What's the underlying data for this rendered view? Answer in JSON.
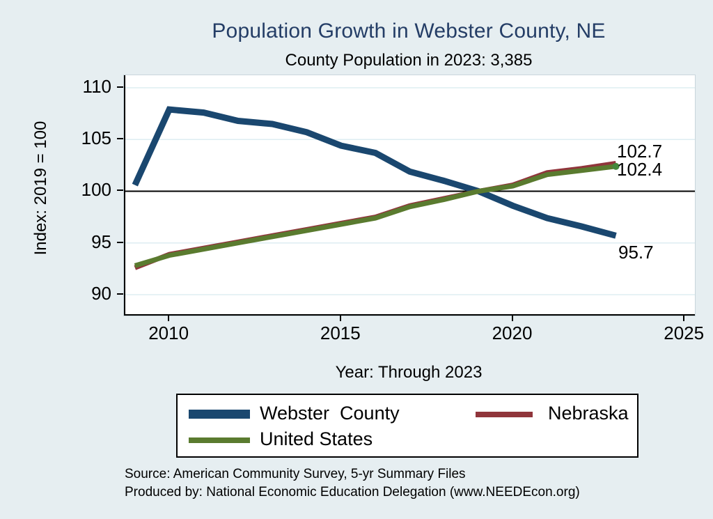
{
  "title": "Population Growth in Webster County, NE",
  "subtitle": "County Population in 2023: 3,385",
  "colors": {
    "background": "#e6eef1",
    "plot_background": "#ffffff",
    "title": "#243d66",
    "grid": "#ddedf2",
    "reference_line": "#000000",
    "axis": "#000000",
    "webster_county": "#1a476f",
    "nebraska": "#90353b",
    "united_states": "#5a7b2f",
    "us_end_marker": "#44883c"
  },
  "y_axis": {
    "label": "Index: 2019 = 100",
    "ticks": [
      {
        "label": "110",
        "value": 110
      },
      {
        "label": "105",
        "value": 105
      },
      {
        "label": "100",
        "value": 100
      },
      {
        "label": "95",
        "value": 95
      },
      {
        "label": "90",
        "value": 90
      }
    ]
  },
  "x_axis": {
    "label": "Year: Through 2023",
    "ticks": [
      {
        "label": "2010",
        "value": 2010
      },
      {
        "label": "2015",
        "value": 2015
      },
      {
        "label": "2020",
        "value": 2020
      },
      {
        "label": "2025",
        "value": 2025
      }
    ]
  },
  "end_labels": [
    {
      "text": "102.7",
      "series": "Nebraska"
    },
    {
      "text": "102.4",
      "series": "United States"
    },
    {
      "text": "95.7",
      "series": "Webster County"
    }
  ],
  "legend": {
    "items": [
      {
        "label": "Webster  County",
        "color_key": "webster_county"
      },
      {
        "label": "Nebraska",
        "color_key": "nebraska"
      },
      {
        "label": "United States",
        "color_key": "united_states"
      }
    ]
  },
  "notes": {
    "source": "Source: American Community Survey, 5-yr Summary Files",
    "produced_by": "Produced by: National Economic Education Delegation (www.NEEDEcon.org)"
  },
  "chart_data": {
    "type": "line",
    "title": "Population Growth in Webster County, NE",
    "subtitle": "County Population in 2023: 3,385",
    "xlabel": "Year: Through 2023",
    "ylabel": "Index: 2019 = 100",
    "x": [
      2009,
      2010,
      2011,
      2012,
      2013,
      2014,
      2015,
      2016,
      2017,
      2018,
      2019,
      2020,
      2021,
      2022,
      2023
    ],
    "series": [
      {
        "name": "Webster County",
        "color": "#1a476f",
        "width": 9,
        "values": [
          100.6,
          107.9,
          107.6,
          106.8,
          106.5,
          105.7,
          104.4,
          103.7,
          101.9,
          101.0,
          100.0,
          98.6,
          97.4,
          96.6,
          95.7
        ]
      },
      {
        "name": "Nebraska",
        "color": "#90353b",
        "width": 7,
        "values": [
          92.6,
          93.9,
          94.5,
          95.1,
          95.7,
          96.3,
          96.9,
          97.5,
          98.6,
          99.3,
          100.0,
          100.6,
          101.8,
          102.2,
          102.7
        ]
      },
      {
        "name": "United States",
        "color": "#5a7b2f",
        "width": 7,
        "end_marker": true,
        "values": [
          92.8,
          93.8,
          94.4,
          95.0,
          95.6,
          96.2,
          96.8,
          97.4,
          98.5,
          99.2,
          100.0,
          100.5,
          101.6,
          102.0,
          102.4
        ]
      }
    ],
    "reference_line_y": 100,
    "xlim": [
      2008.68,
      2025.3
    ],
    "ylim": [
      87.98,
      111.21
    ],
    "grid": "horizontal",
    "legend_position": "bottom"
  }
}
